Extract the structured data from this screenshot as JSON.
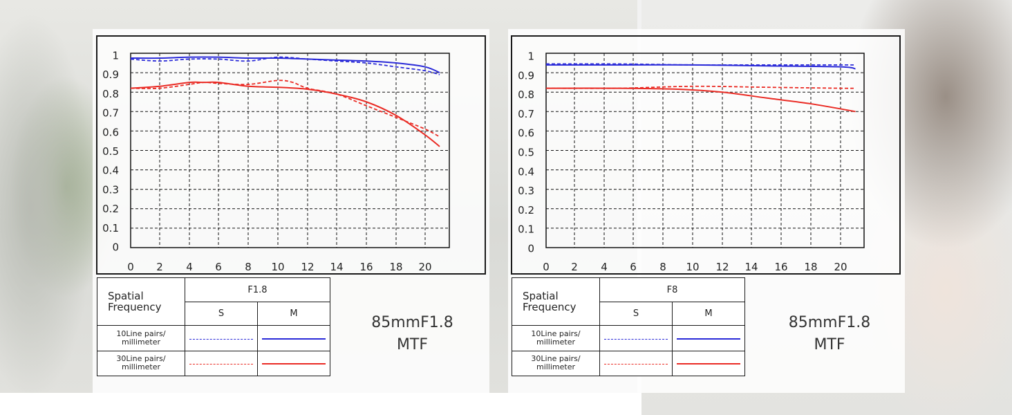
{
  "lens_name": "85mmF1.8",
  "caption_suffix": "MTF",
  "legend": {
    "spatial_frequency": "Spatial\nFrequency",
    "sagittal": "S",
    "meridional": "M",
    "row_10": "10Line pairs/\nmillimeter",
    "row_30": "30Line pairs/\nmillimeter"
  },
  "colors": {
    "lp10": "#2a2ad8",
    "lp30": "#ea2b24"
  },
  "chart_data": [
    {
      "type": "line",
      "aperture": "F1.8",
      "xlim": [
        0,
        22
      ],
      "ylim": [
        0,
        1
      ],
      "x_ticks": [
        "0",
        "2",
        "4",
        "6",
        "8",
        "10",
        "12",
        "14",
        "16",
        "18",
        "20"
      ],
      "y_ticks": [
        "0",
        "0.1",
        "0.2",
        "0.3",
        "0.4",
        "0.5",
        "0.6",
        "0.7",
        "0.8",
        "0.9",
        "1"
      ],
      "grid": true,
      "series": [
        {
          "name": "10Line pairs/millimeter S",
          "style": "dashed",
          "color": "#2a2ad8",
          "x": [
            0,
            2,
            4,
            6,
            8,
            10,
            12,
            14,
            16,
            18,
            20,
            21
          ],
          "y": [
            0.97,
            0.96,
            0.97,
            0.97,
            0.96,
            0.98,
            0.97,
            0.96,
            0.95,
            0.93,
            0.91,
            0.89
          ]
        },
        {
          "name": "10Line pairs/millimeter M",
          "style": "solid",
          "color": "#2a2ad8",
          "x": [
            0,
            2,
            4,
            6,
            8,
            10,
            12,
            14,
            16,
            18,
            20,
            21
          ],
          "y": [
            0.975,
            0.975,
            0.98,
            0.98,
            0.975,
            0.975,
            0.97,
            0.965,
            0.96,
            0.95,
            0.93,
            0.9
          ]
        },
        {
          "name": "30Line pairs/millimeter S",
          "style": "dashed",
          "color": "#ea2b24",
          "x": [
            0,
            2,
            4,
            5,
            6,
            8,
            10,
            11,
            12,
            14,
            16,
            18,
            20,
            21
          ],
          "y": [
            0.82,
            0.82,
            0.84,
            0.85,
            0.845,
            0.84,
            0.86,
            0.85,
            0.82,
            0.79,
            0.73,
            0.67,
            0.61,
            0.57
          ]
        },
        {
          "name": "30Line pairs/millimeter M",
          "style": "solid",
          "color": "#ea2b24",
          "x": [
            0,
            2,
            4,
            5,
            6,
            8,
            10,
            12,
            14,
            16,
            18,
            20,
            21
          ],
          "y": [
            0.82,
            0.83,
            0.85,
            0.85,
            0.85,
            0.83,
            0.825,
            0.815,
            0.79,
            0.75,
            0.68,
            0.58,
            0.52
          ]
        }
      ]
    },
    {
      "type": "line",
      "aperture": "F8",
      "xlim": [
        0,
        22
      ],
      "ylim": [
        0,
        1
      ],
      "x_ticks": [
        "0",
        "2",
        "4",
        "6",
        "8",
        "10",
        "12",
        "14",
        "16",
        "18",
        "20"
      ],
      "y_ticks": [
        "0",
        "0.1",
        "0.2",
        "0.3",
        "0.4",
        "0.5",
        "0.6",
        "0.7",
        "0.8",
        "0.9",
        "1"
      ],
      "grid": true,
      "series": [
        {
          "name": "10Line pairs/millimeter S",
          "style": "dashed",
          "color": "#2a2ad8",
          "x": [
            0,
            5,
            10,
            15,
            20,
            21
          ],
          "y": [
            0.945,
            0.945,
            0.94,
            0.94,
            0.94,
            0.94
          ]
        },
        {
          "name": "10Line pairs/millimeter M",
          "style": "solid",
          "color": "#2a2ad8",
          "x": [
            0,
            5,
            10,
            15,
            20,
            21
          ],
          "y": [
            0.94,
            0.94,
            0.94,
            0.935,
            0.93,
            0.92
          ]
        },
        {
          "name": "30Line pairs/millimeter S",
          "style": "dashed",
          "color": "#ea2b24",
          "x": [
            0,
            5,
            10,
            15,
            20,
            21
          ],
          "y": [
            0.82,
            0.82,
            0.83,
            0.825,
            0.82,
            0.82
          ]
        },
        {
          "name": "30Line pairs/millimeter M",
          "style": "solid",
          "color": "#ea2b24",
          "x": [
            0,
            5,
            9,
            12,
            15,
            18,
            21
          ],
          "y": [
            0.82,
            0.82,
            0.815,
            0.8,
            0.77,
            0.74,
            0.7
          ]
        }
      ]
    }
  ]
}
